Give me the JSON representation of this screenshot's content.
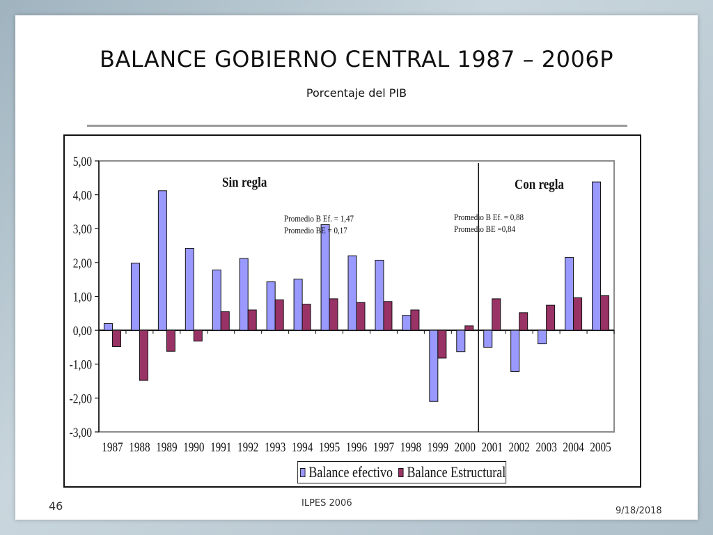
{
  "slide": {
    "title": "BALANCE GOBIERNO CENTRAL 1987 – 2006P",
    "subtitle": "Porcentaje del PIB",
    "page_number": "46",
    "footer_center": "ILPES 2006",
    "footer_date": "9/18/2018"
  },
  "colors": {
    "series1": "#9999ff",
    "series2": "#993366"
  },
  "chart_data": {
    "type": "bar",
    "categories": [
      "1987",
      "1988",
      "1989",
      "1990",
      "1991",
      "1992",
      "1993",
      "1994",
      "1995",
      "1996",
      "1997",
      "1998",
      "1999",
      "2000",
      "2001",
      "2002",
      "2003",
      "2004",
      "2005"
    ],
    "series": [
      {
        "name": "Balance efectivo",
        "values": [
          0.2,
          1.98,
          4.12,
          2.42,
          1.78,
          2.12,
          1.43,
          1.51,
          3.12,
          2.2,
          2.07,
          0.44,
          -2.1,
          -0.63,
          -0.5,
          -1.22,
          -0.4,
          2.15,
          4.38
        ]
      },
      {
        "name": "Balance Estructural",
        "values": [
          -0.48,
          -1.48,
          -0.62,
          -0.32,
          0.55,
          0.6,
          0.9,
          0.77,
          0.93,
          0.82,
          0.85,
          0.6,
          -0.82,
          0.13,
          0.93,
          0.52,
          0.74,
          0.96,
          1.02
        ]
      }
    ],
    "ylim": [
      -3,
      5
    ],
    "yticks": [
      "-3,00",
      "-2,00",
      "-1,00",
      "0,00",
      "1,00",
      "2,00",
      "3,00",
      "4,00",
      "5,00"
    ],
    "xlabel": "",
    "ylabel": "",
    "legend_position": "bottom",
    "divider_after": "2000",
    "annotations": {
      "sin_regla": "Sin regla",
      "con_regla": "Con regla",
      "left_avg_1": "Promedio B Ef. = 1,47",
      "left_avg_2": "Promedio BE    = 0,17",
      "right_avg_1": "Promedio B Ef. = 0,88",
      "right_avg_2": "Promedio BE    =0,84"
    }
  }
}
